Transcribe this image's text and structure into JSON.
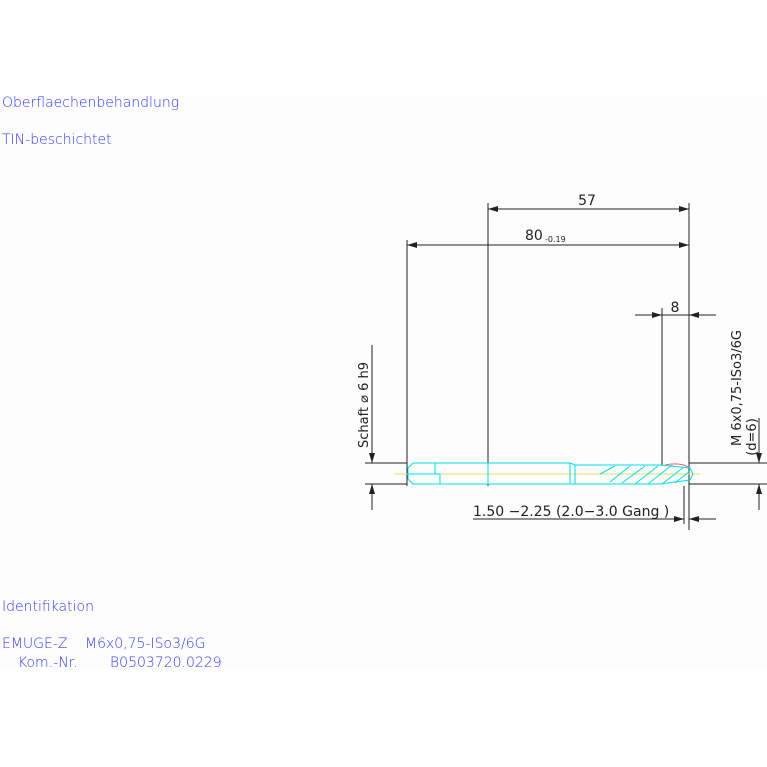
{
  "surface": {
    "label": "Oberflaechenbehandlung",
    "value": "TIN-beschichtet"
  },
  "identification": {
    "label": "Identifikation",
    "line1_name": "EMUGE-Z",
    "line1_value": "M6x0,75-ISo3/6G",
    "line2_name": "Kom.-Nr.",
    "line2_value": "B0503720.0229"
  },
  "dimensions": {
    "d57": "57",
    "d80": "80",
    "d80_tol": "-0.19",
    "d8": "8",
    "shank": "Schaft ⌀ 6 h9",
    "thread": "M 6x0,75-ISo3/6G",
    "thread_d": "(d=6)",
    "chamfer": "1.50 −2.25 (2.0−3.0 Gang  )"
  },
  "colors": {
    "text": "#3b3bf0",
    "tool": "#00e0e8",
    "axis": "#e8e060",
    "dim": "#222222"
  }
}
